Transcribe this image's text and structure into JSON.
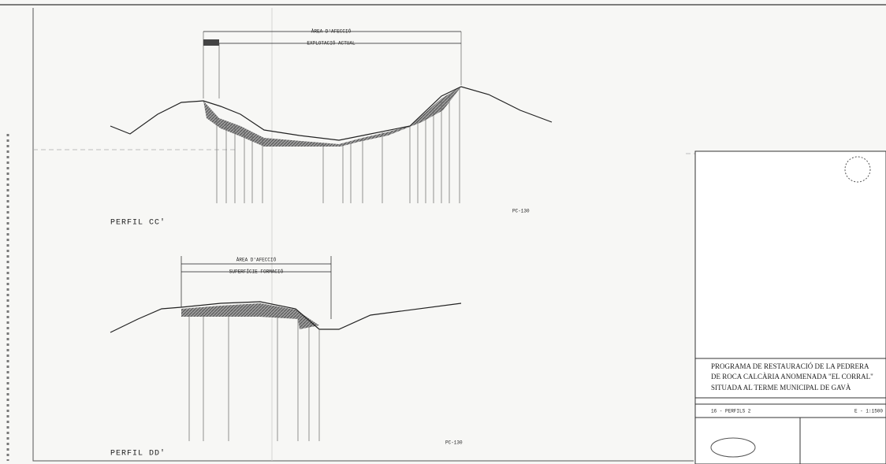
{
  "profile_cc": {
    "area_label": "ÀREA D'AFECCIÓ",
    "extent_label": "EXPLOTACIÓ ACTUAL",
    "title": "PERFIL CC'",
    "code": "PC-130"
  },
  "profile_dd": {
    "area_label": "ÀREA D'AFECCIÓ",
    "extent_label": "SUPERFÍCIE FORMACIÓ",
    "title": "PERFIL DD'",
    "code": "PC-130"
  },
  "title_block": {
    "lines": [
      "PROGRAMA DE RESTAURACIÓ  DE LA PEDRERA",
      "DE ROCA CALCÀRIA ANOMENADA \"EL CORRAL\"",
      "SITUADA AL TERME MUNICIPAL DE GAVÀ"
    ],
    "sheet": "16 - PERFILS 2",
    "scale": "E - 1:1500"
  }
}
